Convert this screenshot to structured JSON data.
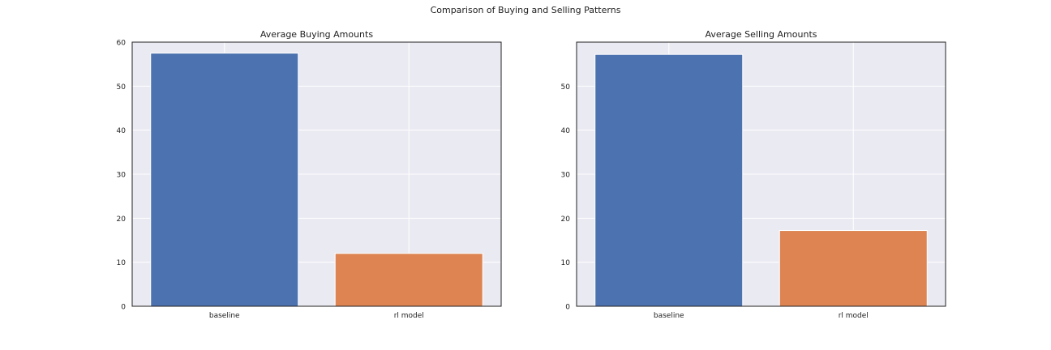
{
  "figure": {
    "suptitle": "Comparison of Buying and Selling Patterns"
  },
  "colors": {
    "axes_background": "#eaeaf2",
    "grid": "#ffffff",
    "frame": "#222222",
    "baseline_bar": "#4c72b0",
    "rl_model_bar": "#dd8452"
  },
  "chart_data": [
    {
      "type": "bar",
      "title": "Average Buying Amounts",
      "xlabel": "",
      "ylabel": "",
      "categories": [
        "baseline",
        "rl model"
      ],
      "values": [
        57.5,
        12.0
      ],
      "ylim": [
        0,
        60
      ],
      "yticks": [
        0,
        10,
        20,
        30,
        40,
        50,
        60
      ],
      "grid": true
    },
    {
      "type": "bar",
      "title": "Average Selling Amounts",
      "xlabel": "",
      "ylabel": "",
      "categories": [
        "baseline",
        "rl model"
      ],
      "values": [
        57.2,
        17.2
      ],
      "ylim": [
        0,
        60
      ],
      "yticks": [
        0,
        10,
        20,
        30,
        40,
        50
      ],
      "grid": true
    }
  ]
}
